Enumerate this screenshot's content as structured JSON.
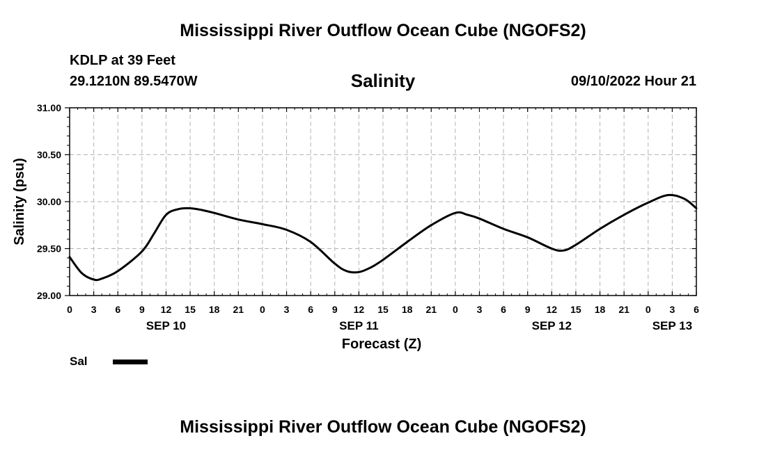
{
  "header": {
    "title": "Mississippi River Outflow Ocean Cube (NGOFS2)",
    "station": "KDLP at 39 Feet",
    "coords": "29.1210N  89.5470W",
    "subtitle": "Salinity",
    "datetime": "09/10/2022 Hour 21"
  },
  "footer": {
    "title": "Mississippi River Outflow Ocean Cube (NGOFS2)"
  },
  "chart_data": {
    "type": "line",
    "title": "Salinity",
    "xlabel": "Forecast (Z)",
    "ylabel": "Salinity (psu)",
    "ylim": [
      29.0,
      31.0
    ],
    "yticks": [
      "29.00",
      "29.50",
      "30.00",
      "30.50",
      "31.00"
    ],
    "xlim_hours": [
      0,
      78
    ],
    "xticks_hours": [
      0,
      3,
      6,
      9,
      12,
      15,
      18,
      21,
      24,
      27,
      30,
      33,
      36,
      39,
      42,
      45,
      48,
      51,
      54,
      57,
      60,
      63,
      66,
      69,
      72,
      75,
      78
    ],
    "xtick_labels": [
      "0",
      "3",
      "6",
      "9",
      "12",
      "15",
      "18",
      "21",
      "0",
      "3",
      "6",
      "9",
      "12",
      "15",
      "18",
      "21",
      "0",
      "3",
      "6",
      "9",
      "12",
      "15",
      "18",
      "21",
      "0",
      "3",
      "6"
    ],
    "date_labels": [
      {
        "label": "SEP 10",
        "hour": 12
      },
      {
        "label": "SEP 11",
        "hour": 36
      },
      {
        "label": "SEP 12",
        "hour": 60
      },
      {
        "label": "SEP 13",
        "hour": 75
      }
    ],
    "grid": true,
    "legend": {
      "position": "bottom-left",
      "entries": [
        {
          "name": "Sal",
          "color": "#000000"
        }
      ]
    },
    "series": [
      {
        "name": "Sal",
        "color": "#000000",
        "x": [
          0,
          1.5,
          3,
          4,
          6,
          9,
          10.5,
          12,
          13.5,
          15,
          16.5,
          18,
          21,
          24,
          27,
          30,
          33,
          34.5,
          36,
          37.5,
          39,
          42,
          45,
          48,
          49.5,
          51,
          54,
          57,
          60,
          61.5,
          63,
          66,
          69,
          72,
          74.5,
          76.5,
          78
        ],
        "values": [
          29.41,
          29.24,
          29.17,
          29.18,
          29.26,
          29.47,
          29.66,
          29.86,
          29.92,
          29.93,
          29.91,
          29.88,
          29.81,
          29.76,
          29.7,
          29.57,
          29.34,
          29.26,
          29.25,
          29.3,
          29.38,
          29.57,
          29.75,
          29.88,
          29.86,
          29.82,
          29.71,
          29.62,
          29.5,
          29.48,
          29.54,
          29.71,
          29.86,
          29.99,
          30.07,
          30.03,
          29.93
        ]
      }
    ]
  }
}
